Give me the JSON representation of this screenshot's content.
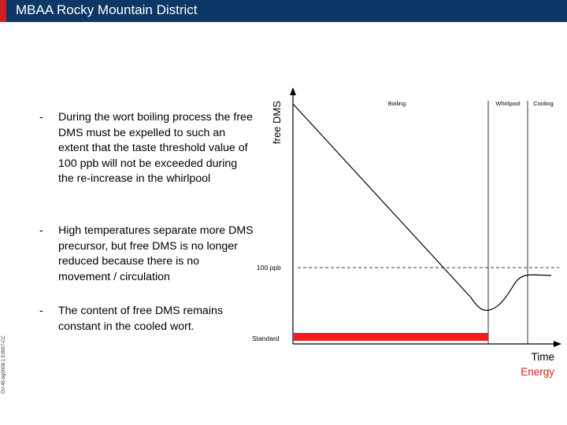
{
  "header": {
    "title": "MBAA Rocky Mountain District",
    "bg_color": "#0d3764",
    "accent_color": "#d11f2a"
  },
  "bullets": [
    {
      "dash": "-",
      "text": "During the wort boiling process the free DMS must be expelled to such an extent that the taste threshold value of 100 ppb will not be exceeded during the re-increase in the whirlpool"
    },
    {
      "dash": "-",
      "text": "High temperatures separate more DMS precursor, but free DMS is no longer reduced because there is no movement / circulation"
    },
    {
      "dash": "-",
      "text": "The content of free DMS remains constant in the cooled wort."
    }
  ],
  "side_code": "DV-45-bg0008-1 E0957-CC",
  "diagram": {
    "y_axis_label": "free DMS",
    "x_axis_label_1": "Time",
    "x_axis_label_2": "Energy",
    "x_axis_label_2_color": "#cc2a1e",
    "phases": [
      "Boiling",
      "Whirlpool",
      "Cooling"
    ],
    "threshold_label": "100 ppb",
    "standard_label": "Standard",
    "standard_bar_color": "#ee1c1c"
  }
}
